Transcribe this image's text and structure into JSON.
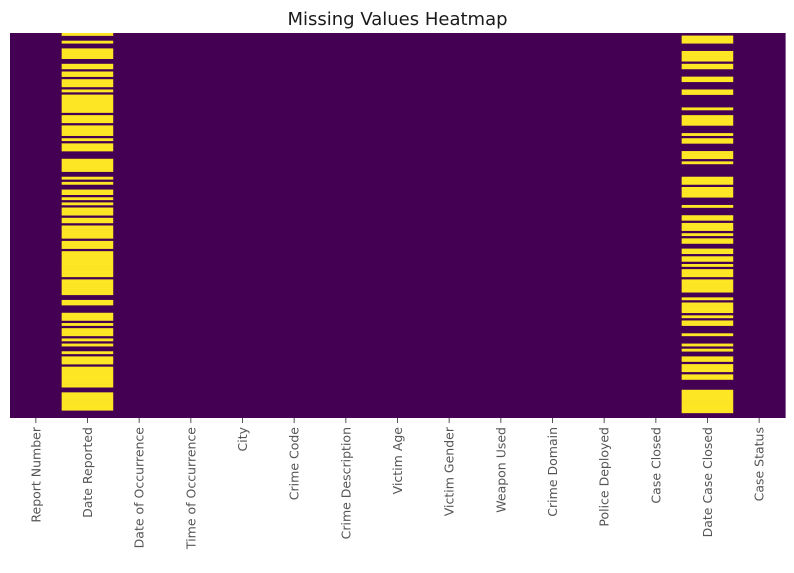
{
  "chart_data": {
    "type": "heatmap",
    "title": "Missing Values Heatmap",
    "xlabel": "",
    "ylabel": "",
    "colorbar": false,
    "colors": {
      "present": "#440154",
      "missing": "#fde725"
    },
    "columns": [
      "Report Number",
      "Date Reported",
      "Date of Occurrence",
      "Time of Occurrence",
      "City",
      "Crime Code",
      "Crime Description",
      "Victim Age",
      "Victim Gender",
      "Weapon Used",
      "Crime Domain",
      "Police Deployed",
      "Case Closed",
      "Date Case Closed",
      "Case Status"
    ],
    "approx_missing_fraction": [
      0,
      0.65,
      0,
      0,
      0,
      0,
      0,
      0,
      0,
      0,
      0,
      0,
      0,
      0.55,
      0
    ]
  }
}
